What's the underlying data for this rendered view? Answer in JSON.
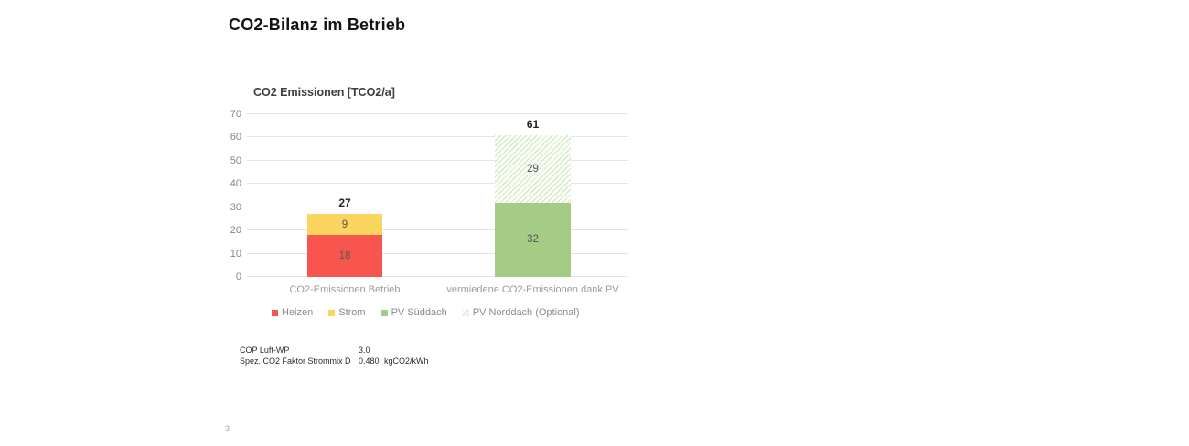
{
  "page": {
    "title": "CO2-Bilanz im Betrieb",
    "page_number": "3"
  },
  "chart_data": {
    "type": "bar",
    "stacked": true,
    "title": "CO2 Emissionen [TCO2/a]",
    "categories": [
      "CO2-Emissionen Betrieb",
      "vermiedene CO2-Emissionen dank PV"
    ],
    "series": [
      {
        "name": "Heizen",
        "color": "#f8554f",
        "pattern": "solid",
        "values": [
          18,
          0
        ]
      },
      {
        "name": "Strom",
        "color": "#fcd55f",
        "pattern": "solid",
        "values": [
          9,
          0
        ]
      },
      {
        "name": "PV Süddach",
        "color": "#a5cc85",
        "pattern": "solid",
        "values": [
          0,
          32
        ]
      },
      {
        "name": "PV Norddach (Optional)",
        "color": "#cde5bd",
        "pattern": "diagonal-hatch",
        "hatch_bg": "#fbfdf8",
        "values": [
          0,
          29
        ]
      }
    ],
    "totals": [
      27,
      61
    ],
    "ylim": [
      0,
      70
    ],
    "ytick_step": 10,
    "grid": true,
    "legend_position": "bottom",
    "colors": {
      "gridline": "#e4e4e4",
      "axis_text": "#858585",
      "category_text": "#9b9b9b",
      "segment_text": "#565656",
      "total_text": "#222222"
    }
  },
  "footnotes": {
    "rows": [
      {
        "label": "COP Luft-WP",
        "value": "3.0",
        "unit": ""
      },
      {
        "label": "Spez. CO2 Faktor Strommix D",
        "value": "0.480",
        "unit": "kgCO2/kWh"
      }
    ]
  }
}
